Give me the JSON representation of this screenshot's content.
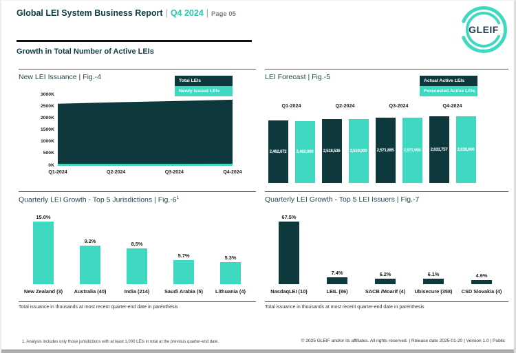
{
  "header": {
    "title": "Global LEI System Business Report",
    "separator": "|",
    "period": "Q4 2024",
    "page": "Page 05",
    "logo_text": "GLEIF"
  },
  "section_heading": "Growth in Total Number of Active LEIs",
  "colors": {
    "dark_teal": "#0d393c",
    "teal": "#3fd9c2",
    "heading_text": "#0d3b44",
    "accent_text": "#2cc7ae"
  },
  "chart_data": [
    {
      "id": "fig4",
      "type": "area",
      "title": "New LEI Issuance | Fig.-4",
      "legend": [
        {
          "label": "Total LEIs",
          "color": "#0d393c"
        },
        {
          "label": "Newly Issued LEIs",
          "color": "#3fd9c2"
        }
      ],
      "x": [
        "Q1-2024",
        "Q2-2024",
        "Q3-2024",
        "Q4-2024"
      ],
      "y_ticks": [
        "3000K",
        "2500K",
        "2000K",
        "1500K",
        "1000K",
        "500K",
        "0K"
      ],
      "ylim_thousands": [
        0,
        3000
      ],
      "series": [
        {
          "name": "Total LEIs",
          "color": "#0d393c",
          "values_thousands_estimated": [
            2630,
            2690,
            2740,
            2800
          ]
        },
        {
          "name": "Newly Issued LEIs",
          "color": "#3fd9c2",
          "values_thousands_estimated": [
            85,
            85,
            85,
            90
          ]
        }
      ]
    },
    {
      "id": "fig5",
      "type": "bar",
      "title": "LEI Forecast | Fig.-5",
      "legend": [
        {
          "label": "Actual Active LEIs",
          "color": "#0d393c"
        },
        {
          "label": "Forecasted Active LEIs",
          "color": "#3fd9c2"
        }
      ],
      "categories": [
        "Q1-2024",
        "Q2-2024",
        "Q3-2024",
        "Q4-2024"
      ],
      "series": [
        {
          "name": "Actual Active LEIs",
          "color": "#0d393c",
          "values": [
            2462672,
            2518536,
            2571885,
            2633757
          ],
          "labels": [
            "2,462,672",
            "2,518,536",
            "2,571,885",
            "2,633,757"
          ]
        },
        {
          "name": "Forecasted Active LEIs",
          "color": "#3fd9c2",
          "values": [
            2462000,
            2519000,
            2572000,
            2638000
          ],
          "labels": [
            "2,462,000",
            "2,519,000",
            "2,572,000",
            "2,638,000"
          ]
        }
      ]
    },
    {
      "id": "fig6",
      "type": "bar",
      "title": "Quarterly LEI Growth - Top 5 Jurisdictions | Fig.-6",
      "title_superscript": "1",
      "categories": [
        "New Zealand (3)",
        "Australia (40)",
        "India (214)",
        "Saudi Arabia (5)",
        "Lithuania (4)"
      ],
      "values_percent": [
        15.0,
        9.2,
        8.5,
        5.7,
        5.3
      ],
      "labels": [
        "15.0%",
        "9.2%",
        "8.5%",
        "5.7%",
        "5.3%"
      ],
      "bar_color": "#3fd9c2",
      "note": "Total issuance in thousands at most recent quarter-end date in parenthesis"
    },
    {
      "id": "fig7",
      "type": "bar",
      "title": "Quarterly LEI Growth - Top 5 LEI Issuers | Fig.-7",
      "categories": [
        "NasdaqLEI (10)",
        "LEIL (86)",
        "SACB /Moarif (4)",
        "Ubisecure (358)",
        "CSD Slovakia (4)"
      ],
      "values_percent": [
        67.5,
        7.4,
        6.2,
        6.1,
        4.6
      ],
      "labels": [
        "67.5%",
        "7.4%",
        "6.2%",
        "6.1%",
        "4.6%"
      ],
      "bar_color": "#0d393c",
      "note": "Total issuance in thousands at most recent quarter-end date in parenthesis"
    }
  ],
  "footer": {
    "analysis_note": "1. Analysis includes only those jurisdictions with at least 1,000 LEIs in total at the previous quarter-end date.",
    "copyright": "© 2025 GLEIF and/or its affiliates. All rights reserved. | Release date 2025-01-20 | Version 1.0 | Public"
  }
}
